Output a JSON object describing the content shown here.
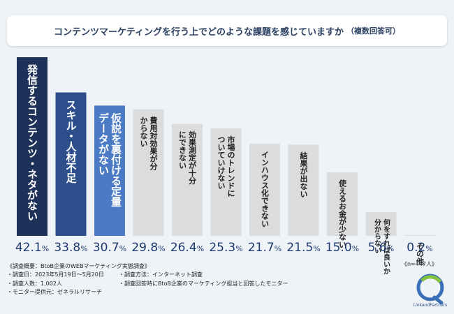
{
  "title": "コンテンツマーケティングを行う上でどのような課題を感じていますか",
  "title_note": "（複数回答可）",
  "n_label": "《n=447人》",
  "chart_data": {
    "type": "bar",
    "categories": [
      "発信するコンテンツ・ネタがない",
      "スキル・人材不足",
      "仮説を裏付ける定量データがない",
      "費用対効果が分からない",
      "効果測定が十分にできない",
      "市場のトレンドについていけない",
      "インハウス化できない",
      "結果が出ない",
      "使えるお金が少ない",
      "何をすれば良いか分からない",
      "その他"
    ],
    "label_lines": [
      [
        "発信するコンテンツ・ネタがない"
      ],
      [
        "スキル・人材不足"
      ],
      [
        "仮説を裏付ける定量",
        "データがない"
      ],
      [
        "費用対効果が分",
        "からない"
      ],
      [
        "効果測定が十分",
        "にできない"
      ],
      [
        "市場のトレンドに",
        "ついていけない"
      ],
      [
        "インハウス化できない"
      ],
      [
        "結果が出ない"
      ],
      [
        "使えるお金が少ない"
      ],
      [
        "何をすれば良いか",
        "分からない"
      ],
      [
        "その他"
      ]
    ],
    "values": [
      42.1,
      33.8,
      30.7,
      29.8,
      26.4,
      25.3,
      21.7,
      21.5,
      15.0,
      5.6,
      0.2
    ],
    "value_labels": [
      "42.1",
      "33.8",
      "30.7",
      "29.8",
      "26.4",
      "25.3",
      "21.7",
      "21.5",
      "15.0",
      "5.6",
      "0.2"
    ],
    "unit": "%",
    "ylim": [
      0,
      42.1
    ],
    "bar_colors": [
      "#1e3158",
      "#2c4f8c",
      "#4a7bc4",
      "#dcdcdc",
      "#dcdcdc",
      "#dcdcdc",
      "#dcdcdc",
      "#dcdcdc",
      "#dcdcdc",
      "#dcdcdc",
      "#dcdcdc"
    ],
    "label_colors": [
      "#ffffff",
      "#ffffff",
      "#ffffff",
      "#222222",
      "#222222",
      "#222222",
      "#222222",
      "#222222",
      "#222222",
      "#222222",
      "#222222"
    ],
    "value_color": "#1e3a6e"
  },
  "survey": {
    "heading": "《調査概要：BtoB企業のWEBマーケティング実態調査》",
    "left": [
      "・調査日：2023年5月19日～5月20日",
      "・調査人数：1,002人",
      "・モニター提供元：ゼネラルリサーチ"
    ],
    "right": [
      "・調査方法：インターネット調査",
      "・調査回答時にBtoB企業のマーケティング担当と回答したモニター"
    ]
  },
  "logo": {
    "text": "LinkandPartners"
  }
}
